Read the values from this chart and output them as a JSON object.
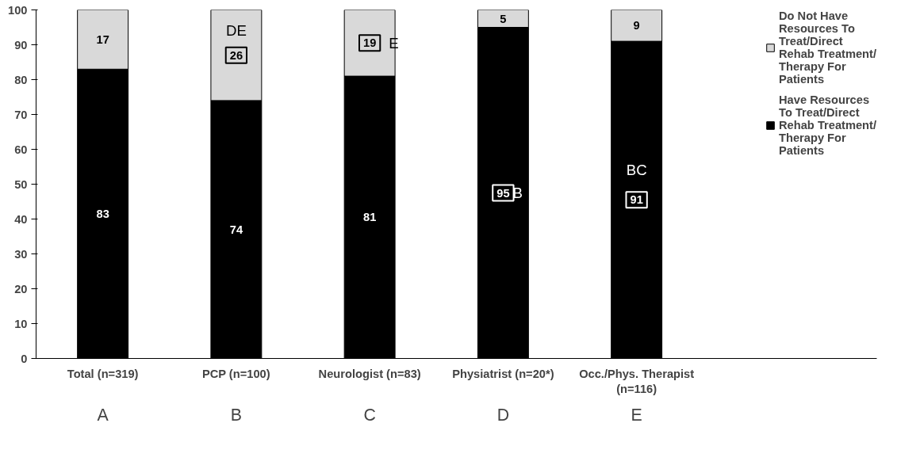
{
  "chart_data": {
    "type": "bar",
    "stacked": true,
    "categories": [
      "Total (n=319)",
      "PCP (n=100)",
      "Neurologist (n=83)",
      "Physiatrist (n=20*)",
      "Occ./Phys. Therapist (n=116)"
    ],
    "series": [
      {
        "name": "Have Resources To Treat/Direct Rehab Treatment/Therapy For Patients",
        "color": "#000000",
        "values": [
          83,
          74,
          81,
          95,
          91
        ]
      },
      {
        "name": "Do Not Have Resources To Treat/Direct Rehab Treatment/Therapy For Patients",
        "color": "#d9d9d9",
        "values": [
          17,
          26,
          19,
          5,
          9
        ]
      }
    ],
    "ylim": [
      0,
      100
    ],
    "yticks": [
      0,
      10,
      20,
      30,
      40,
      50,
      60,
      70,
      80,
      90,
      100
    ],
    "data_labels": true,
    "legend": "right",
    "grid": false,
    "annotations": [
      "A",
      "B",
      "C",
      "D",
      "E",
      "DE",
      "E",
      "B",
      "BC"
    ]
  }
}
